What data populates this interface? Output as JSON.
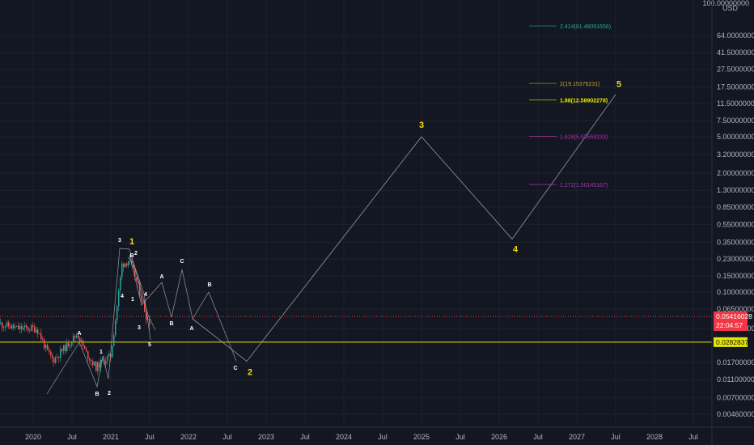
{
  "chart_data": {
    "type": "line",
    "currency": "USD",
    "scale": "log",
    "y_ticks": [
      "100.00000000",
      "64.00000000",
      "41.50000000",
      "27.50000000",
      "17.50000000",
      "11.50000000",
      "7.50000000",
      "5.00000000",
      "3.20000000",
      "2.00000000",
      "1.30000000",
      "0.85000000",
      "0.55000000",
      "0.35000000",
      "0.23000000",
      "0.15000000",
      "0.10000000",
      "0.06500000",
      "0.04000000",
      "0.01700000",
      "0.01100000",
      "0.00700000",
      "0.00460000"
    ],
    "x_ticks": [
      "2020",
      "Jul",
      "2021",
      "Jul",
      "2022",
      "Jul",
      "2023",
      "Jul",
      "2024",
      "Jul",
      "2025",
      "Jul",
      "2026",
      "Jul",
      "2027",
      "Jul",
      "2028",
      "Jul"
    ],
    "current_price": {
      "value": "0.05416028",
      "countdown": "22:04:57",
      "color": "#f23645"
    },
    "support_line": {
      "value": "0.02828374",
      "color": "#e6e600"
    },
    "fib_levels": [
      {
        "label": "2.414(81.48091656)",
        "value": 81.48091656,
        "color": "#22ab94"
      },
      {
        "label": "2(19.15376231)",
        "value": 19.15376231,
        "color": "#c9a227"
      },
      {
        "label": "1.88(12.58902278)",
        "value": 12.58902278,
        "color": "#e6e600"
      },
      {
        "label": "1.618(5.03559233)",
        "value": 5.03559233,
        "color": "#b02fb0"
      },
      {
        "label": "1.272(1.50145167)",
        "value": 1.50145167,
        "color": "#b02fb0"
      }
    ],
    "projection": [
      {
        "date": "2022-10",
        "value": 0.0175,
        "label": "2",
        "color": "#f5d90a"
      },
      {
        "date": "2025-01",
        "value": 5.0,
        "label": "3",
        "color": "#f5d90a"
      },
      {
        "date": "2026-03",
        "value": 0.38,
        "label": "4",
        "color": "#f5d90a"
      },
      {
        "date": "2027-07",
        "value": 14.5,
        "label": "5",
        "color": "#f5d90a"
      }
    ],
    "waves": [
      {
        "label": "A",
        "color": "#ffffff"
      },
      {
        "label": "B",
        "color": "#ffffff"
      },
      {
        "label": "1",
        "color": "#ffffff"
      },
      {
        "label": "2",
        "color": "#ffffff"
      },
      {
        "label": "3",
        "color": "#ffffff"
      },
      {
        "label": "1",
        "color": "#f5d90a"
      },
      {
        "label": "B",
        "color": "#ffffff"
      },
      {
        "label": "2",
        "color": "#ffffff"
      },
      {
        "label": "4",
        "color": "#ffffff"
      },
      {
        "label": "1",
        "color": "#ffffff"
      },
      {
        "label": "4",
        "color": "#ffffff"
      },
      {
        "label": "3",
        "color": "#ffffff"
      },
      {
        "label": "5",
        "color": "#ffffff"
      },
      {
        "label": "A",
        "color": "#ffffff"
      },
      {
        "label": "B",
        "color": "#ffffff"
      },
      {
        "label": "C",
        "color": "#ffffff"
      },
      {
        "label": "A",
        "color": "#ffffff"
      },
      {
        "label": "B",
        "color": "#ffffff"
      },
      {
        "label": "C",
        "color": "#ffffff"
      }
    ]
  }
}
